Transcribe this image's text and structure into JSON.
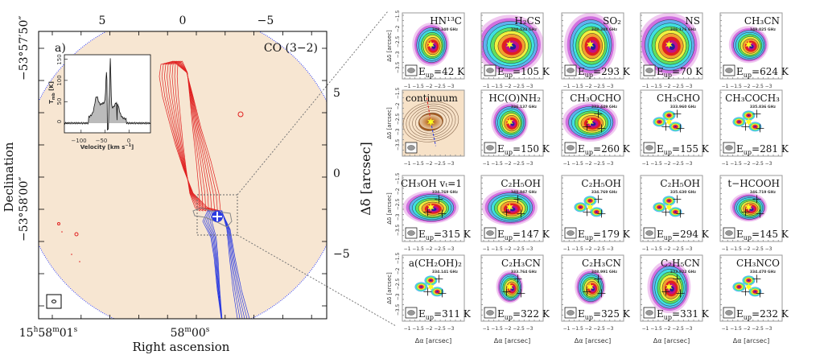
{
  "left_panel": {
    "label": "a)",
    "line": "CO (3−2)",
    "x_axis_label": "Right ascension",
    "y_axis_label": "Declination",
    "right_axis_label": "Δδ [arcsec]",
    "ra_ticks": [
      {
        "h": "15",
        "m": "58",
        "s": "01"
      },
      {
        "m": "58",
        "s": "00"
      }
    ],
    "dec_ticks": [
      "−53°57′50″",
      "−53°58′00″"
    ],
    "top_offset_ticks": [
      "5",
      "0",
      "−5"
    ],
    "right_offset_ticks": [
      "5",
      "0",
      "−5"
    ],
    "colors": {
      "background": "#f7e6d2",
      "redshifted": "#e02020",
      "blueshifted": "#2a3ae0",
      "primary_beam": "#3040ff"
    },
    "inset": {
      "x_label": "Velocity [km s",
      "x_label_sup": "−1",
      "x_label_end": "]",
      "y_label": "T",
      "y_label_sub": "mb",
      "y_label_end": " [K]",
      "x_ticks": [
        "−100",
        "−50",
        "0"
      ],
      "y_ticks": [
        "0",
        "50",
        "100",
        "150"
      ]
    }
  },
  "grid": {
    "x_axis_label": "Δα [arcsec]",
    "y_axis_label": "Δδ [arcsec]",
    "x_ticks": [
      "−1",
      "−1.5",
      "−2",
      "−2.5",
      "−3"
    ],
    "y_ticks": [
      "−1.5",
      "−2",
      "−2.5",
      "−3",
      "−3.5"
    ],
    "eup_symbol": "E",
    "eup_sub": "up",
    "panels": [
      {
        "name": "HN¹³C",
        "freq": "348.340 GHz",
        "eup": "=42 K"
      },
      {
        "name": "H₂CS",
        "freq": "348.532 GHz",
        "eup": "=105 K"
      },
      {
        "name": "SO₂",
        "freq": "348.388 GHz",
        "eup": "=293 K"
      },
      {
        "name": "NS",
        "freq": "346.176 GHz",
        "eup": "=70 K"
      },
      {
        "name": "CH₃CN",
        "freq": "349.025 GHz",
        "eup": "=624 K"
      },
      {
        "name": "continuum",
        "freq": "",
        "eup": ""
      },
      {
        "name": "HC(O)NH₂",
        "freq": "336.137 GHz",
        "eup": "=150 K"
      },
      {
        "name": "CH₃OCHO",
        "freq": "333.449 GHz",
        "eup": "=260 K"
      },
      {
        "name": "CH₃CHO",
        "freq": "333.960 GHz",
        "eup": "=155 K"
      },
      {
        "name": "CH₃COCH₃",
        "freq": "335.836 GHz",
        "eup": "=281 K"
      },
      {
        "name": "CH₃OH vₜ=1",
        "freq": "334.769 GHz",
        "eup": "=315 K"
      },
      {
        "name": "C₂H₅OH",
        "freq": "348.847 GHz",
        "eup": "=147 K"
      },
      {
        "name": "C₂H₅OH",
        "freq": "334.769 GHz",
        "eup": "=179 K"
      },
      {
        "name": "C₂H₅OH",
        "freq": "335.630 GHz",
        "eup": "=294 K"
      },
      {
        "name": "t−HCOOH",
        "freq": "346.719 GHz",
        "eup": "=145 K"
      },
      {
        "name": "a(CH₂OH)₂",
        "freq": "334.141 GHz",
        "eup": "=311 K"
      },
      {
        "name": "C₂H₃CN",
        "freq": "333.764 GHz",
        "eup": "=322 K"
      },
      {
        "name": "C₂H₃CN",
        "freq": "348.991 GHz",
        "eup": "=325 K"
      },
      {
        "name": "C₂H₅CN",
        "freq": "333.922 GHz",
        "eup": "=331 K"
      },
      {
        "name": "CH₃NCO",
        "freq": "334.470 GHz",
        "eup": "=232 K"
      }
    ],
    "colormap": [
      "#f0c8f0",
      "#d070e0",
      "#60b0f0",
      "#40e0e0",
      "#60e060",
      "#f0f040",
      "#f0a030",
      "#e02020",
      "#c0108a",
      "#2020a0"
    ],
    "star_color": "#ffff20"
  }
}
